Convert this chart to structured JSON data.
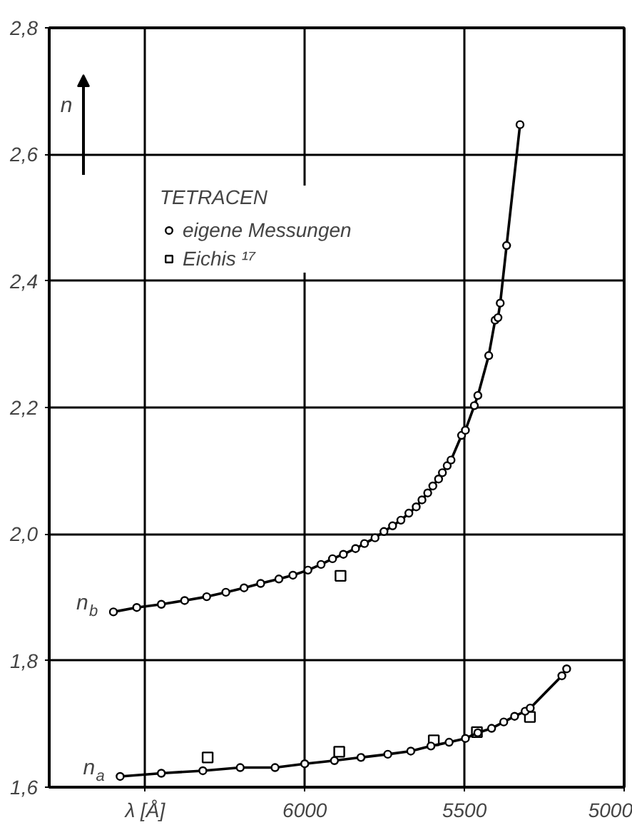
{
  "chart_data": {
    "type": "line",
    "xlabel": "λ [Å]",
    "ylabel": "n",
    "legend_title": "TETRACEN",
    "legend": "top left",
    "grid": true,
    "line_style": "solid",
    "xlim": [
      6800,
      5000
    ],
    "ylim": [
      1.6,
      2.8
    ],
    "xticks": [
      {
        "value": 6500,
        "label": null
      },
      6000,
      5500,
      5000
    ],
    "yticks": [
      {
        "value": 1.6,
        "label": "1,6"
      },
      {
        "value": 1.8,
        "label": "1,8"
      },
      {
        "value": 2.0,
        "label": "2,0"
      },
      {
        "value": 2.2,
        "label": "2,2"
      },
      {
        "value": 2.4,
        "label": "2,4"
      },
      {
        "value": 2.6,
        "label": "2,6"
      },
      {
        "value": 2.8,
        "label": "2,8"
      }
    ],
    "series": [
      {
        "name": "n$_{b}$",
        "marker": "none",
        "color": "#000000",
        "x": [
          6599,
          6526,
          6449,
          6376,
          6307,
          6247,
          6190,
          6138,
          6081,
          6037,
          5990,
          5949,
          5913,
          5879,
          5841,
          5813,
          5780,
          5752,
          5725,
          5699,
          5674,
          5651,
          5633,
          5615,
          5599,
          5581,
          5569,
          5554,
          5542,
          5509,
          5497,
          5469,
          5458,
          5424,
          5404,
          5395,
          5388,
          5368,
          5326
        ],
        "values": [
          1.877,
          1.884,
          1.889,
          1.895,
          1.901,
          1.908,
          1.915,
          1.922,
          1.929,
          1.935,
          1.943,
          1.952,
          1.961,
          1.968,
          1.977,
          1.985,
          1.994,
          2.004,
          2.013,
          2.022,
          2.033,
          2.043,
          2.054,
          2.065,
          2.076,
          2.087,
          2.097,
          2.108,
          2.117,
          2.156,
          2.164,
          2.203,
          2.219,
          2.282,
          2.338,
          2.342,
          2.365,
          2.456,
          2.647
        ]
      },
      {
        "name": "n$_{a}$",
        "marker": "none",
        "color": "#000000",
        "x": [
          6578,
          6449,
          6319,
          6202,
          6093,
          6000,
          5907,
          5824,
          5740,
          5668,
          5605,
          5548,
          5497,
          5458,
          5415,
          5377,
          5343,
          5310,
          5294,
          5195,
          5180
        ],
        "values": [
          1.617,
          1.622,
          1.626,
          1.631,
          1.631,
          1.637,
          1.642,
          1.647,
          1.652,
          1.657,
          1.665,
          1.671,
          1.677,
          1.686,
          1.693,
          1.703,
          1.712,
          1.72,
          1.725,
          1.776,
          1.787
        ]
      },
      {
        "name": "eigene Messungen",
        "type": "scatter",
        "marker": "circle",
        "color": "#000000",
        "x": [
          6599,
          6526,
          6449,
          6376,
          6307,
          6247,
          6190,
          6138,
          6081,
          6037,
          5990,
          5949,
          5913,
          5879,
          5841,
          5813,
          5780,
          5752,
          5725,
          5699,
          5674,
          5651,
          5633,
          5615,
          5599,
          5581,
          5569,
          5554,
          5542,
          5509,
          5497,
          5469,
          5458,
          5424,
          5404,
          5395,
          5388,
          5368,
          5326,
          6578,
          6449,
          6319,
          6202,
          6093,
          6000,
          5907,
          5824,
          5740,
          5668,
          5605,
          5548,
          5497,
          5458,
          5415,
          5377,
          5343,
          5310,
          5294,
          5195,
          5180
        ],
        "values": [
          1.877,
          1.884,
          1.889,
          1.895,
          1.901,
          1.908,
          1.915,
          1.922,
          1.929,
          1.935,
          1.943,
          1.952,
          1.961,
          1.968,
          1.977,
          1.985,
          1.994,
          2.004,
          2.013,
          2.022,
          2.033,
          2.043,
          2.054,
          2.065,
          2.076,
          2.087,
          2.097,
          2.108,
          2.117,
          2.156,
          2.164,
          2.203,
          2.219,
          2.282,
          2.338,
          2.342,
          2.365,
          2.456,
          2.647,
          1.617,
          1.622,
          1.626,
          1.631,
          1.631,
          1.637,
          1.642,
          1.647,
          1.652,
          1.657,
          1.665,
          1.671,
          1.677,
          1.686,
          1.693,
          1.703,
          1.712,
          1.72,
          1.725,
          1.776,
          1.787
        ]
      },
      {
        "name": "Eichis ¹⁷",
        "type": "scatter",
        "marker": "square",
        "color": "#000000",
        "x": [
          5888,
          6304,
          5892,
          5596,
          5461,
          5295
        ],
        "values": [
          1.934,
          1.647,
          1.656,
          1.674,
          1.687,
          1.711
        ]
      }
    ]
  }
}
